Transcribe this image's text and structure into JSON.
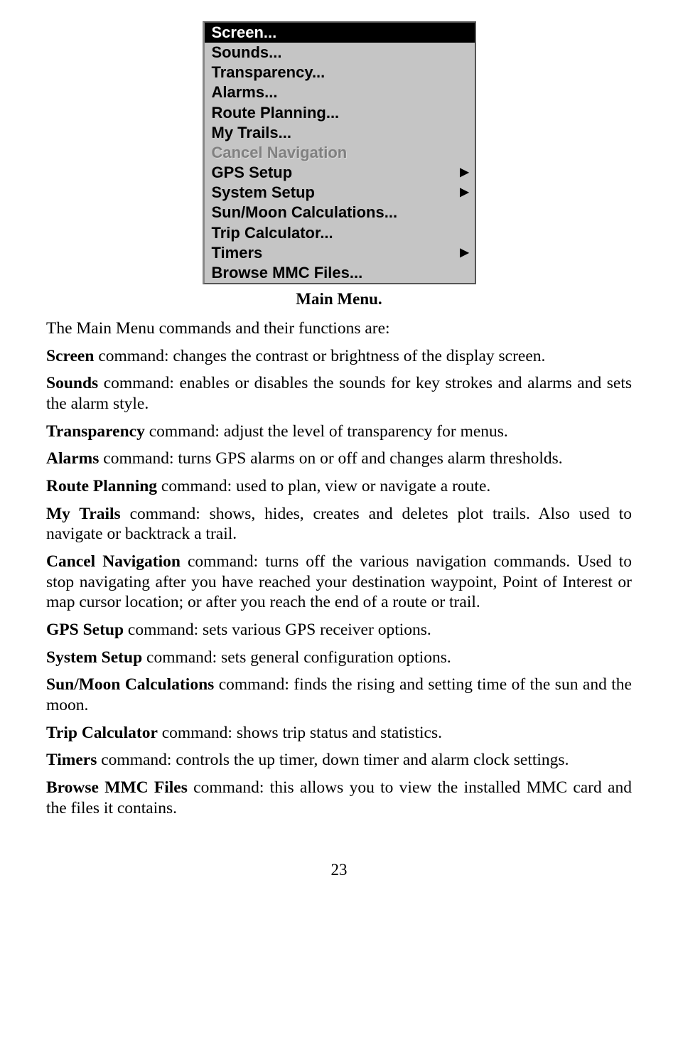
{
  "menu": {
    "items": [
      {
        "label": "Screen...",
        "selected": true,
        "disabled": false,
        "submenu": false
      },
      {
        "label": "Sounds...",
        "selected": false,
        "disabled": false,
        "submenu": false
      },
      {
        "label": "Transparency...",
        "selected": false,
        "disabled": false,
        "submenu": false
      },
      {
        "label": "Alarms...",
        "selected": false,
        "disabled": false,
        "submenu": false
      },
      {
        "label": "Route Planning...",
        "selected": false,
        "disabled": false,
        "submenu": false
      },
      {
        "label": "My Trails...",
        "selected": false,
        "disabled": false,
        "submenu": false
      },
      {
        "label": "Cancel Navigation",
        "selected": false,
        "disabled": true,
        "submenu": false
      },
      {
        "label": "GPS Setup",
        "selected": false,
        "disabled": false,
        "submenu": true
      },
      {
        "label": "System Setup",
        "selected": false,
        "disabled": false,
        "submenu": true
      },
      {
        "label": "Sun/Moon Calculations...",
        "selected": false,
        "disabled": false,
        "submenu": false
      },
      {
        "label": "Trip Calculator...",
        "selected": false,
        "disabled": false,
        "submenu": false
      },
      {
        "label": "Timers",
        "selected": false,
        "disabled": false,
        "submenu": true
      },
      {
        "label": "Browse MMC Files...",
        "selected": false,
        "disabled": false,
        "submenu": false
      }
    ],
    "arrow_glyph": "▶",
    "bg_color": "#c5c5c5",
    "selected_bg": "#000000",
    "selected_fg": "#ffffff",
    "disabled_fg": "#808080"
  },
  "caption": "Main Menu.",
  "intro": "The Main Menu commands and their functions are:",
  "desc": {
    "screen": {
      "name": "Screen",
      "text": " command: changes the contrast or brightness of the display screen."
    },
    "sounds": {
      "name": "Sounds",
      "text": " command: enables or disables the sounds for key strokes and alarms and sets the alarm style."
    },
    "transparency": {
      "name": "Transparency",
      "text": " command: adjust the level of transparency for menus."
    },
    "alarms": {
      "name": "Alarms",
      "text": " command: turns GPS alarms on or off and changes alarm thresholds."
    },
    "route": {
      "name": "Route Planning",
      "text": " command: used to plan, view or navigate a route."
    },
    "trails": {
      "name": "My Trails",
      "text": " command: shows, hides, creates and deletes plot trails. Also used to navigate or backtrack a trail."
    },
    "cancel": {
      "name": "Cancel Navigation",
      "text": " command: turns off the various navigation commands. Used to stop navigating after you have reached your destination waypoint, Point of Interest or map cursor location; or after you reach the end of a route or trail."
    },
    "gps": {
      "name": "GPS Setup",
      "text": " command: sets various GPS receiver options."
    },
    "system": {
      "name": "System Setup",
      "text": " command: sets general configuration options."
    },
    "sunmoon": {
      "name": "Sun/Moon Calculations",
      "text": " command: finds the rising and setting time of the sun and the moon."
    },
    "trip": {
      "name": "Trip Calculator",
      "text": " command: shows trip status and statistics."
    },
    "timers": {
      "name": "Timers",
      "text": " command: controls the up timer, down timer and alarm clock settings."
    },
    "browse": {
      "name": "Browse MMC Files",
      "text": " command: this allows you to view the installed MMC card and the files it contains."
    }
  },
  "page_number": "23"
}
